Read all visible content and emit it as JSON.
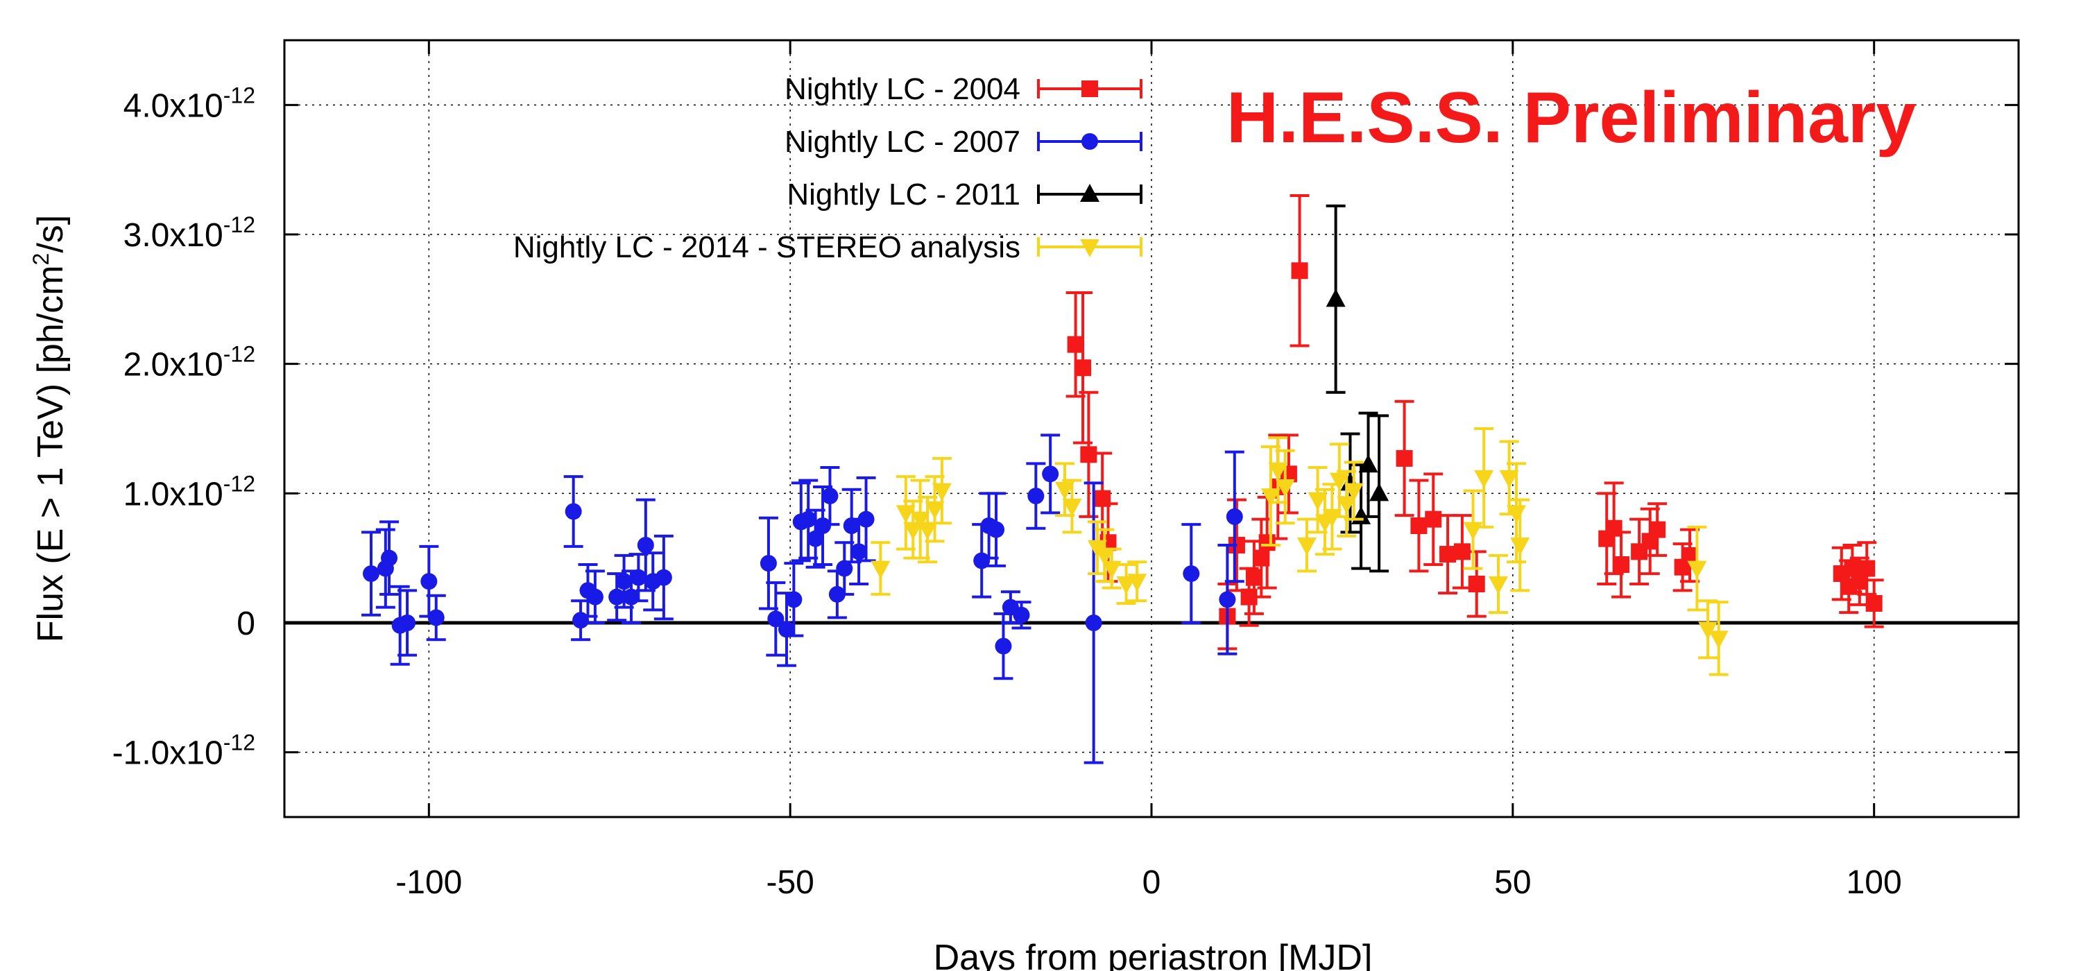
{
  "chart_data": {
    "type": "scatter",
    "title": "",
    "annotation": "H.E.S.S. Preliminary",
    "annotation_color": "#f41a1a",
    "xlabel": "Days from periastron [MJD]",
    "ylabel": "Flux (E > 1 TeV) [ph/cm²/s]",
    "ylabel_parts": [
      "Flux (E > 1 TeV) [ph/cm",
      "2",
      "/s]"
    ],
    "xlim": [
      -120,
      120
    ],
    "ylim": [
      -1.5,
      4.5
    ],
    "y_unit_note": "y values in units of 1e-12 ph/cm^2/s",
    "grid": true,
    "legend_position": "top-center",
    "x_ticks": [
      {
        "value": -100,
        "label": "-100"
      },
      {
        "value": -50,
        "label": "-50"
      },
      {
        "value": 0,
        "label": "0"
      },
      {
        "value": 50,
        "label": "50"
      },
      {
        "value": 100,
        "label": "100"
      }
    ],
    "y_ticks": [
      {
        "value": -1,
        "base": "-1.0x10",
        "exp": "-12"
      },
      {
        "value": 0,
        "base": "0",
        "exp": ""
      },
      {
        "value": 1,
        "base": "1.0x10",
        "exp": "-12"
      },
      {
        "value": 2,
        "base": "2.0x10",
        "exp": "-12"
      },
      {
        "value": 3,
        "base": "3.0x10",
        "exp": "-12"
      },
      {
        "value": 4,
        "base": "4.0x10",
        "exp": "-12"
      }
    ],
    "series": [
      {
        "name": "Nightly LC - 2004",
        "color": "#f41a1a",
        "marker": "square",
        "points": [
          {
            "x": -10.5,
            "y": 2.15,
            "err": 0.4
          },
          {
            "x": -9.5,
            "y": 1.97,
            "err": 0.58
          },
          {
            "x": -8.7,
            "y": 1.3,
            "err": 0.48
          },
          {
            "x": -6.8,
            "y": 0.96,
            "err": 0.35
          },
          {
            "x": -6.0,
            "y": 0.62,
            "err": 0.3
          },
          {
            "x": 10.5,
            "y": 0.05,
            "err": 0.25
          },
          {
            "x": 11.8,
            "y": 0.6,
            "err": 0.35
          },
          {
            "x": 13.5,
            "y": 0.2,
            "err": 0.22
          },
          {
            "x": 14.2,
            "y": 0.35,
            "err": 0.28
          },
          {
            "x": 15.2,
            "y": 0.5,
            "err": 0.3
          },
          {
            "x": 16.0,
            "y": 0.62,
            "err": 0.35
          },
          {
            "x": 17.5,
            "y": 1.05,
            "err": 0.4
          },
          {
            "x": 19.0,
            "y": 1.15,
            "err": 0.3
          },
          {
            "x": 20.5,
            "y": 2.72,
            "err": 0.58
          },
          {
            "x": 35.0,
            "y": 1.27,
            "err": 0.44
          },
          {
            "x": 37.0,
            "y": 0.75,
            "err": 0.35
          },
          {
            "x": 39.0,
            "y": 0.8,
            "err": 0.35
          },
          {
            "x": 41.0,
            "y": 0.53,
            "err": 0.3
          },
          {
            "x": 43.0,
            "y": 0.55,
            "err": 0.28
          },
          {
            "x": 45.0,
            "y": 0.3,
            "err": 0.25
          },
          {
            "x": 63.0,
            "y": 0.65,
            "err": 0.35
          },
          {
            "x": 64.0,
            "y": 0.73,
            "err": 0.35
          },
          {
            "x": 65.0,
            "y": 0.45,
            "err": 0.25
          },
          {
            "x": 67.5,
            "y": 0.55,
            "err": 0.25
          },
          {
            "x": 69.0,
            "y": 0.63,
            "err": 0.25
          },
          {
            "x": 70.0,
            "y": 0.72,
            "err": 0.2
          },
          {
            "x": 73.5,
            "y": 0.43,
            "err": 0.18
          },
          {
            "x": 74.5,
            "y": 0.52,
            "err": 0.2
          },
          {
            "x": 95.5,
            "y": 0.38,
            "err": 0.2
          },
          {
            "x": 96.5,
            "y": 0.28,
            "err": 0.2
          },
          {
            "x": 97.0,
            "y": 0.42,
            "err": 0.18
          },
          {
            "x": 98.0,
            "y": 0.32,
            "err": 0.18
          },
          {
            "x": 99.0,
            "y": 0.42,
            "err": 0.2
          },
          {
            "x": 100.0,
            "y": 0.15,
            "err": 0.18
          }
        ]
      },
      {
        "name": "Nightly LC - 2007",
        "color": "#1a1ae6",
        "marker": "circle",
        "points": [
          {
            "x": -108,
            "y": 0.38,
            "err": 0.32
          },
          {
            "x": -106,
            "y": 0.42,
            "err": 0.3
          },
          {
            "x": -105.5,
            "y": 0.5,
            "err": 0.28
          },
          {
            "x": -104,
            "y": -0.02,
            "err": 0.3
          },
          {
            "x": -103,
            "y": 0.0,
            "err": 0.25
          },
          {
            "x": -100,
            "y": 0.32,
            "err": 0.27
          },
          {
            "x": -99,
            "y": 0.04,
            "err": 0.17
          },
          {
            "x": -80,
            "y": 0.86,
            "err": 0.27
          },
          {
            "x": -79,
            "y": 0.02,
            "err": 0.15
          },
          {
            "x": -78,
            "y": 0.25,
            "err": 0.2
          },
          {
            "x": -77,
            "y": 0.2,
            "err": 0.2
          },
          {
            "x": -74,
            "y": 0.2,
            "err": 0.18
          },
          {
            "x": -73,
            "y": 0.32,
            "err": 0.2
          },
          {
            "x": -72,
            "y": 0.2,
            "err": 0.2
          },
          {
            "x": -71,
            "y": 0.35,
            "err": 0.18
          },
          {
            "x": -70,
            "y": 0.6,
            "err": 0.35
          },
          {
            "x": -69,
            "y": 0.32,
            "err": 0.22
          },
          {
            "x": -67.5,
            "y": 0.35,
            "err": 0.32
          },
          {
            "x": -53,
            "y": 0.46,
            "err": 0.35
          },
          {
            "x": -52,
            "y": 0.03,
            "err": 0.28
          },
          {
            "x": -50.5,
            "y": -0.05,
            "err": 0.28
          },
          {
            "x": -49.5,
            "y": 0.18,
            "err": 0.28
          },
          {
            "x": -48.5,
            "y": 0.78,
            "err": 0.3
          },
          {
            "x": -47.5,
            "y": 0.8,
            "err": 0.3
          },
          {
            "x": -46.5,
            "y": 0.65,
            "err": 0.22
          },
          {
            "x": -45.5,
            "y": 0.75,
            "err": 0.3
          },
          {
            "x": -44.5,
            "y": 0.98,
            "err": 0.22
          },
          {
            "x": -43.5,
            "y": 0.22,
            "err": 0.18
          },
          {
            "x": -42.5,
            "y": 0.42,
            "err": 0.2
          },
          {
            "x": -41.5,
            "y": 0.75,
            "err": 0.28
          },
          {
            "x": -40.5,
            "y": 0.55,
            "err": 0.25
          },
          {
            "x": -39.5,
            "y": 0.8,
            "err": 0.32
          },
          {
            "x": -23.5,
            "y": 0.48,
            "err": 0.28
          },
          {
            "x": -22.5,
            "y": 0.75,
            "err": 0.25
          },
          {
            "x": -21.5,
            "y": 0.72,
            "err": 0.28
          },
          {
            "x": -20.5,
            "y": -0.18,
            "err": 0.25
          },
          {
            "x": -19.5,
            "y": 0.12,
            "err": 0.12
          },
          {
            "x": -18,
            "y": 0.06,
            "err": 0.1
          },
          {
            "x": -16,
            "y": 0.98,
            "err": 0.25
          },
          {
            "x": -14,
            "y": 1.15,
            "err": 0.3
          },
          {
            "x": -8,
            "y": 0.0,
            "err": 1.08
          },
          {
            "x": 5.5,
            "y": 0.38,
            "err": 0.38
          },
          {
            "x": 10.5,
            "y": 0.18,
            "err": 0.42
          },
          {
            "x": 11.5,
            "y": 0.82,
            "err": 0.5
          }
        ]
      },
      {
        "name": "Nightly LC - 2011",
        "color": "#000000",
        "marker": "triangle-up",
        "points": [
          {
            "x": 25.5,
            "y": 2.5,
            "err": 0.72
          },
          {
            "x": 27.5,
            "y": 1.08,
            "err": 0.38
          },
          {
            "x": 29.0,
            "y": 0.82,
            "err": 0.4
          },
          {
            "x": 30.0,
            "y": 1.22,
            "err": 0.4
          },
          {
            "x": 31.5,
            "y": 1.0,
            "err": 0.6
          }
        ]
      },
      {
        "name": "Nightly LC - 2014 - STEREO analysis",
        "color": "#f7d51a",
        "marker": "triangle-down",
        "points": [
          {
            "x": -37.5,
            "y": 0.42,
            "err": 0.2
          },
          {
            "x": -34,
            "y": 0.85,
            "err": 0.28
          },
          {
            "x": -33,
            "y": 0.72,
            "err": 0.22
          },
          {
            "x": -32,
            "y": 0.8,
            "err": 0.3
          },
          {
            "x": -31,
            "y": 0.72,
            "err": 0.25
          },
          {
            "x": -30,
            "y": 0.88,
            "err": 0.25
          },
          {
            "x": -29,
            "y": 1.02,
            "err": 0.25
          },
          {
            "x": -12,
            "y": 1.03,
            "err": 0.2
          },
          {
            "x": -11,
            "y": 0.9,
            "err": 0.2
          },
          {
            "x": -7.5,
            "y": 0.58,
            "err": 0.2
          },
          {
            "x": -6.5,
            "y": 0.52,
            "err": 0.2
          },
          {
            "x": -5.5,
            "y": 0.42,
            "err": 0.15
          },
          {
            "x": -3.5,
            "y": 0.3,
            "err": 0.15
          },
          {
            "x": -2,
            "y": 0.32,
            "err": 0.15
          },
          {
            "x": 16.5,
            "y": 0.98,
            "err": 0.38
          },
          {
            "x": 17.5,
            "y": 1.18,
            "err": 0.25
          },
          {
            "x": 18.5,
            "y": 1.05,
            "err": 0.28
          },
          {
            "x": 21.5,
            "y": 0.6,
            "err": 0.2
          },
          {
            "x": 23.0,
            "y": 0.95,
            "err": 0.25
          },
          {
            "x": 24.0,
            "y": 0.78,
            "err": 0.25
          },
          {
            "x": 25.0,
            "y": 0.82,
            "err": 0.25
          },
          {
            "x": 26.0,
            "y": 1.1,
            "err": 0.28
          },
          {
            "x": 27.0,
            "y": 0.92,
            "err": 0.25
          },
          {
            "x": 28.0,
            "y": 1.02,
            "err": 0.22
          },
          {
            "x": 44.5,
            "y": 0.72,
            "err": 0.3
          },
          {
            "x": 46.0,
            "y": 1.12,
            "err": 0.38
          },
          {
            "x": 48.0,
            "y": 0.3,
            "err": 0.22
          },
          {
            "x": 49.5,
            "y": 1.12,
            "err": 0.28
          },
          {
            "x": 50.5,
            "y": 0.85,
            "err": 0.38
          },
          {
            "x": 51.0,
            "y": 0.6,
            "err": 0.35
          },
          {
            "x": 75.5,
            "y": 0.42,
            "err": 0.32
          },
          {
            "x": 77.0,
            "y": -0.05,
            "err": 0.22
          },
          {
            "x": 78.5,
            "y": -0.12,
            "err": 0.28
          }
        ]
      }
    ]
  }
}
